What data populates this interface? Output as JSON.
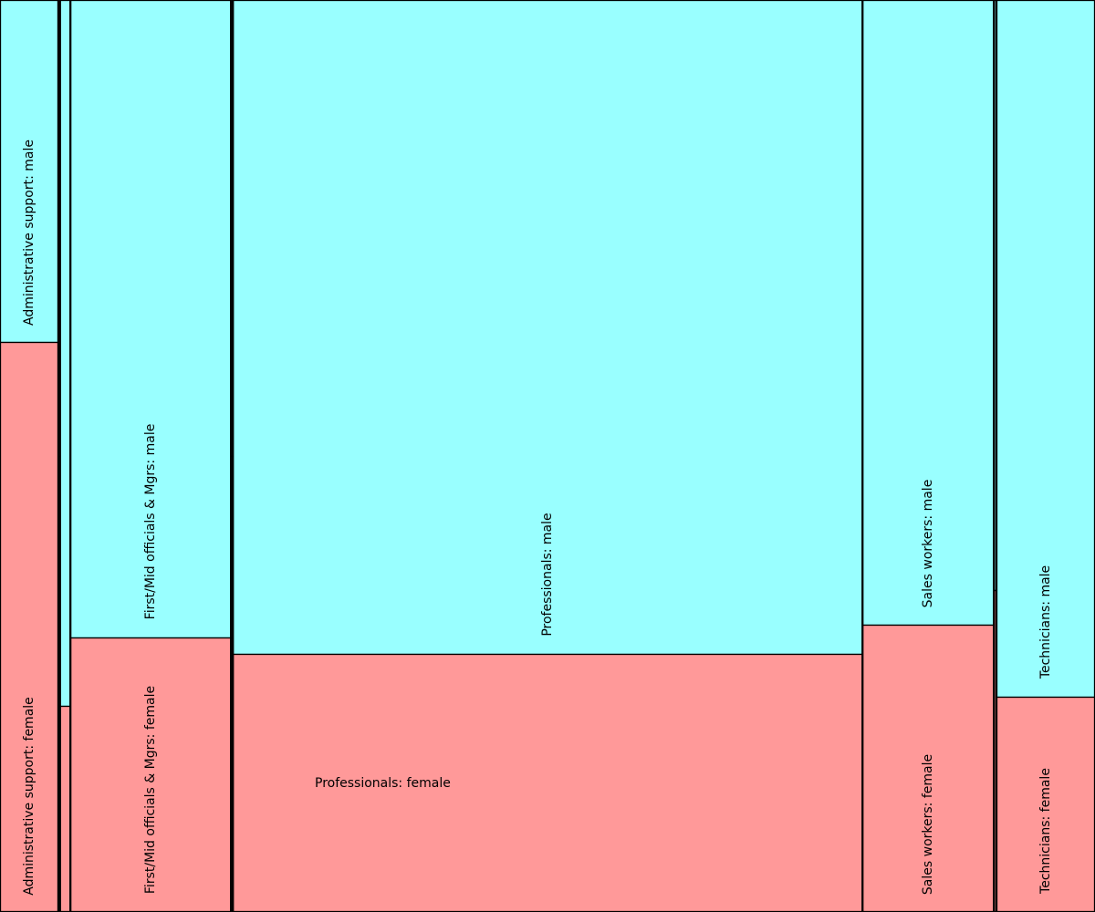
{
  "chart_data": {
    "type": "mosaic",
    "colors": {
      "male": "#99ffff",
      "female": "#ff9999",
      "edge": "#000000"
    },
    "categories": [
      {
        "name": "Administrative support",
        "share": 0.0533,
        "female_fraction": 0.625,
        "labels": {
          "male": "Administrative support: male",
          "female": "Administrative support: female"
        }
      },
      {
        "name": "",
        "share": 0.0015,
        "female_fraction": 0.5,
        "labels": {
          "male": "",
          "female": ""
        }
      },
      {
        "name": "",
        "share": 0.0095,
        "female_fraction": 0.226,
        "labels": {
          "male": "",
          "female": ""
        }
      },
      {
        "name": "First/Mid officials & Mgrs",
        "share": 0.1467,
        "female_fraction": 0.301,
        "labels": {
          "male": "First/Mid officials & Mgrs: male",
          "female": "First/Mid officials & Mgrs: female"
        }
      },
      {
        "name": "",
        "share": 0.0017,
        "female_fraction": 0.5,
        "labels": {
          "male": "",
          "female": ""
        }
      },
      {
        "name": "Professionals",
        "share": 0.575,
        "female_fraction": 0.283,
        "labels": {
          "male": "Professionals: male",
          "female": "Professionals: female"
        }
      },
      {
        "name": "Sales workers",
        "share": 0.12,
        "female_fraction": 0.315,
        "labels": {
          "male": "Sales workers: male",
          "female": "Sales workers: female"
        }
      },
      {
        "name": "",
        "share": 0.0023,
        "female_fraction": 0.353,
        "labels": {
          "male": "",
          "female": ""
        }
      },
      {
        "name": "Technicians",
        "share": 0.09,
        "female_fraction": 0.236,
        "labels": {
          "male": "Technicians: male",
          "female": "Technicians: female"
        }
      }
    ]
  }
}
